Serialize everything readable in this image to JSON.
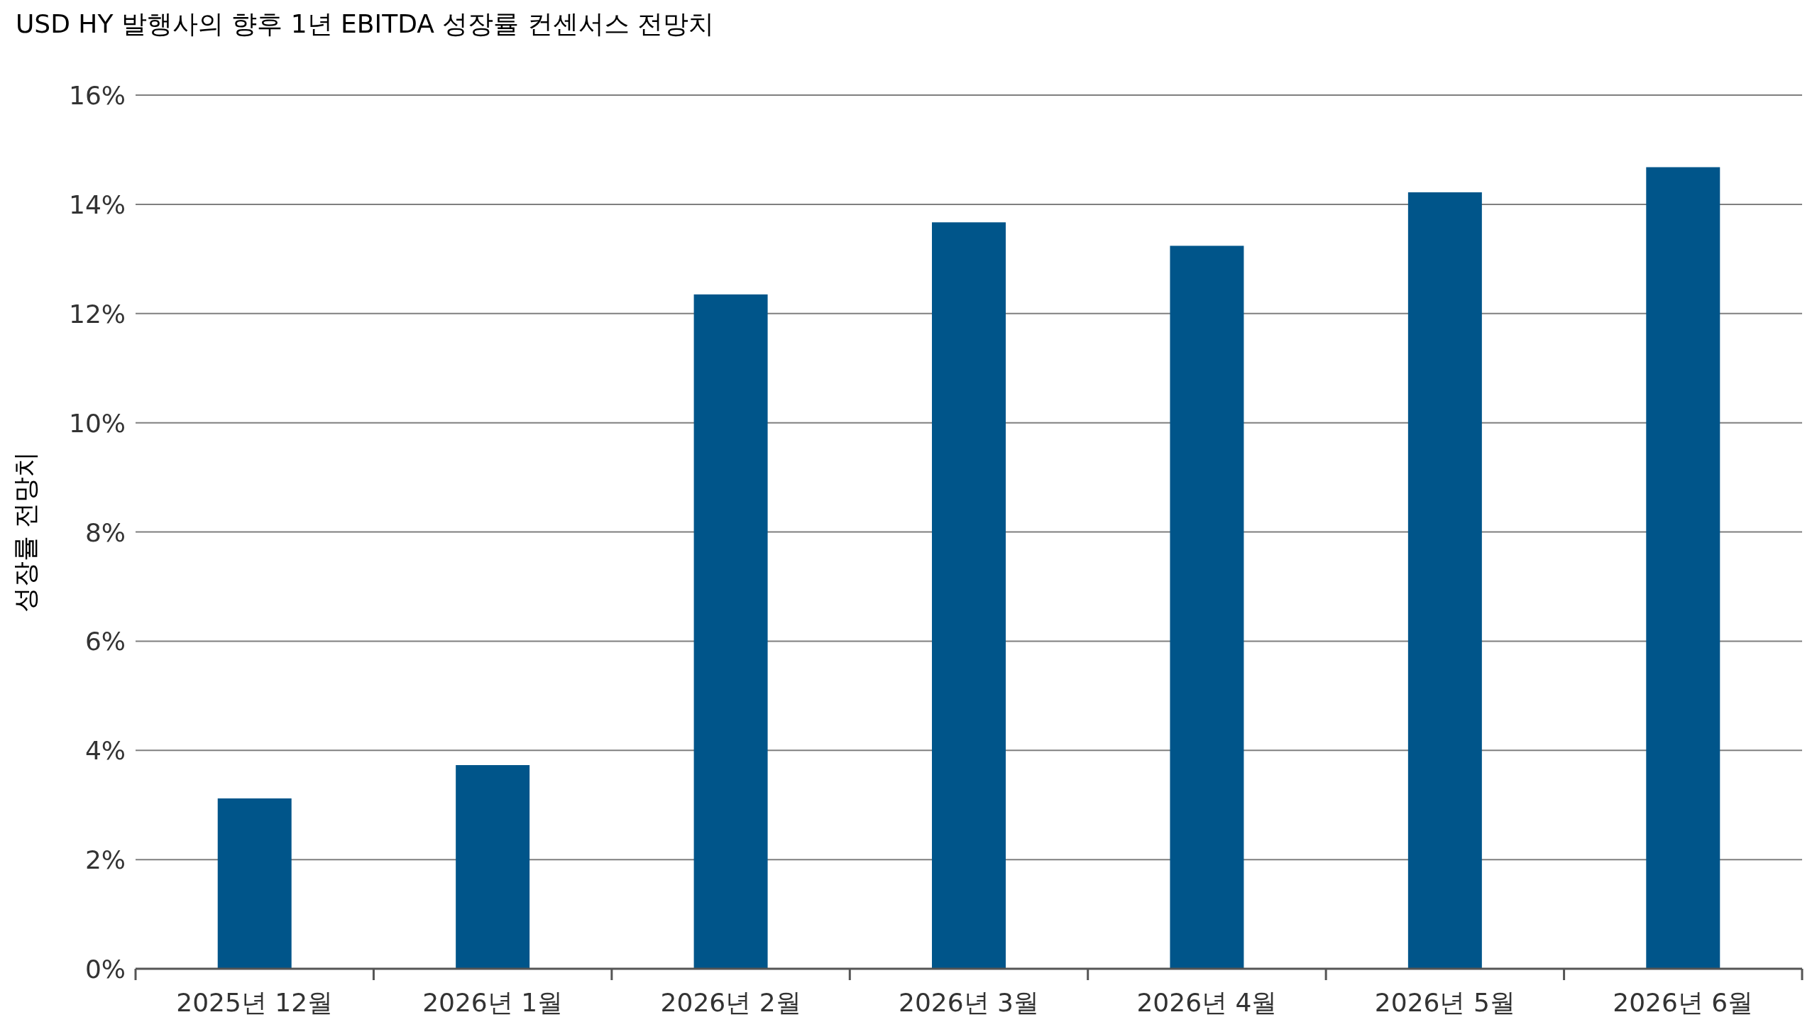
{
  "chart_data": {
    "type": "bar",
    "title": "USD HY 발행사의 향후 1년 EBITDA 성장률 컨센서스 전망치",
    "ylabel": "성장률 전망치",
    "categories": [
      "2025년 12월",
      "2026년 1월",
      "2026년 2월",
      "2026년 3월",
      "2026년 4월",
      "2026년 5월",
      "2026년 6월"
    ],
    "values": [
      3.12,
      3.73,
      12.35,
      13.67,
      13.24,
      14.22,
      14.68
    ],
    "color": "#00558a",
    "ylim": [
      0,
      16
    ],
    "yticks": [
      {
        "value": 0,
        "label": "0%"
      },
      {
        "value": 2,
        "label": "2%"
      },
      {
        "value": 4,
        "label": "4%"
      },
      {
        "value": 6,
        "label": "6%"
      },
      {
        "value": 8,
        "label": "8%"
      },
      {
        "value": 10,
        "label": "10%"
      },
      {
        "value": 12,
        "label": "12%"
      },
      {
        "value": 14,
        "label": "14%"
      },
      {
        "value": 16,
        "label": "16%"
      }
    ],
    "grid": "y"
  }
}
